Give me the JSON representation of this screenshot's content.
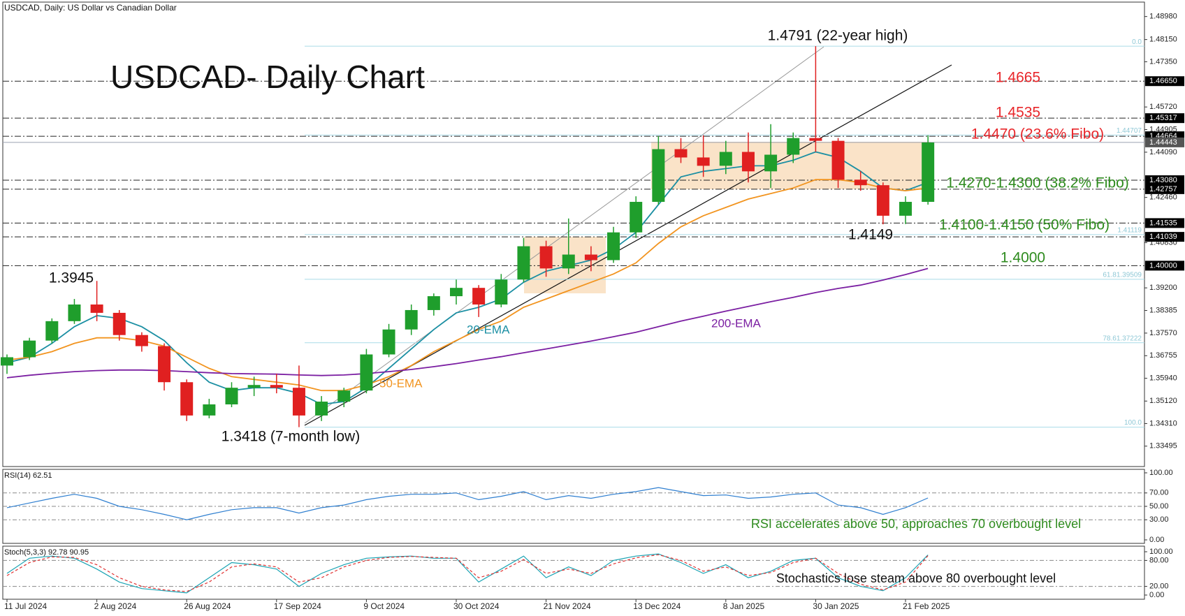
{
  "chart_data": [
    {
      "type": "candlestick",
      "title": "USDCAD- Daily Chart",
      "subtitle": "USDCAD, Daily:  US Dollar vs Canadian Dollar",
      "categories": [
        "11 Jul 2024",
        null,
        null,
        null,
        "2 Aug 2024",
        null,
        null,
        null,
        "26 Aug 2024",
        null,
        null,
        null,
        "17 Sep 2024",
        null,
        null,
        null,
        "9 Oct 2024",
        null,
        null,
        null,
        "30 Oct 2024",
        null,
        null,
        null,
        "21 Nov 2024",
        null,
        null,
        null,
        "13 Dec 2024",
        null,
        null,
        null,
        "8 Jan 2025",
        null,
        null,
        null,
        "30 Jan 2025",
        null,
        null,
        null,
        "21 Feb 2025",
        null
      ],
      "open": [
        1.364,
        1.367,
        1.373,
        1.38,
        1.386,
        1.383,
        1.375,
        1.371,
        1.358,
        1.346,
        1.35,
        1.356,
        1.357,
        1.356,
        1.346,
        1.351,
        1.355,
        1.368,
        1.377,
        1.384,
        1.389,
        1.392,
        1.386,
        1.395,
        1.407,
        1.399,
        1.404,
        1.402,
        1.412,
        1.423,
        1.442,
        1.439,
        1.436,
        1.441,
        1.434,
        1.44,
        1.446,
        1.445,
        1.431,
        1.429,
        1.418,
        1.423
      ],
      "high": [
        1.368,
        1.374,
        1.381,
        1.388,
        1.3945,
        1.384,
        1.376,
        1.372,
        1.359,
        1.352,
        1.358,
        1.36,
        1.361,
        1.364,
        1.353,
        1.356,
        1.37,
        1.379,
        1.386,
        1.39,
        1.395,
        1.393,
        1.397,
        1.41,
        1.409,
        1.417,
        1.407,
        1.414,
        1.425,
        1.4467,
        1.446,
        1.447,
        1.445,
        1.448,
        1.451,
        1.448,
        1.4791,
        1.446,
        1.434,
        1.43,
        1.425,
        1.447
      ],
      "low": [
        1.361,
        1.366,
        1.372,
        1.379,
        1.38,
        1.373,
        1.369,
        1.355,
        1.344,
        1.345,
        1.349,
        1.353,
        1.354,
        1.3418,
        1.344,
        1.349,
        1.354,
        1.367,
        1.375,
        1.382,
        1.386,
        1.3815,
        1.385,
        1.394,
        1.396,
        1.397,
        1.398,
        1.401,
        1.41,
        1.422,
        1.437,
        1.432,
        1.433,
        1.43,
        1.428,
        1.437,
        1.441,
        1.428,
        1.427,
        1.4149,
        1.415,
        1.422
      ],
      "close": [
        1.367,
        1.373,
        1.38,
        1.386,
        1.383,
        1.375,
        1.371,
        1.358,
        1.346,
        1.35,
        1.356,
        1.357,
        1.356,
        1.346,
        1.351,
        1.355,
        1.368,
        1.377,
        1.384,
        1.389,
        1.392,
        1.386,
        1.395,
        1.407,
        1.399,
        1.404,
        1.402,
        1.412,
        1.423,
        1.442,
        1.439,
        1.436,
        1.441,
        1.434,
        1.44,
        1.446,
        1.445,
        1.431,
        1.429,
        1.418,
        1.423,
        1.4444
      ],
      "up_color": "#1f9e2c",
      "down_color": "#e02020",
      "series": [
        {
          "name": "20-EMA",
          "color": "#1b8fa3",
          "values": [
            1.365,
            1.367,
            1.372,
            1.378,
            1.382,
            1.381,
            1.378,
            1.373,
            1.365,
            1.358,
            1.355,
            1.356,
            1.356,
            1.354,
            1.35,
            1.351,
            1.356,
            1.363,
            1.37,
            1.377,
            1.383,
            1.385,
            1.388,
            1.394,
            1.398,
            1.4,
            1.402,
            1.406,
            1.412,
            1.422,
            1.432,
            1.434,
            1.435,
            1.436,
            1.436,
            1.438,
            1.441,
            1.439,
            1.434,
            1.428,
            1.427,
            1.43
          ]
        },
        {
          "name": "50-EMA",
          "color": "#f2941f",
          "values": [
            1.366,
            1.367,
            1.369,
            1.372,
            1.374,
            1.374,
            1.373,
            1.371,
            1.367,
            1.363,
            1.36,
            1.359,
            1.358,
            1.357,
            1.355,
            1.355,
            1.357,
            1.36,
            1.364,
            1.369,
            1.373,
            1.377,
            1.38,
            1.385,
            1.388,
            1.391,
            1.394,
            1.397,
            1.401,
            1.408,
            1.414,
            1.418,
            1.421,
            1.424,
            1.426,
            1.428,
            1.431,
            1.431,
            1.43,
            1.428,
            1.427,
            1.428
          ]
        },
        {
          "name": "200-EMA",
          "color": "#7b1fa2",
          "values": [
            1.3596,
            1.3605,
            1.3612,
            1.3618,
            1.3622,
            1.3624,
            1.3624,
            1.3622,
            1.3618,
            1.3614,
            1.3611,
            1.361,
            1.3609,
            1.3606,
            1.3604,
            1.3606,
            1.3611,
            1.3618,
            1.3626,
            1.3636,
            1.3647,
            1.366,
            1.3672,
            1.3686,
            1.37,
            1.3714,
            1.3728,
            1.3744,
            1.376,
            1.378,
            1.38,
            1.3818,
            1.3836,
            1.3853,
            1.387,
            1.3886,
            1.3903,
            1.3918,
            1.393,
            1.3948,
            1.3968,
            1.399
          ]
        }
      ],
      "ylim": [
        1.3276,
        1.495
      ],
      "yticks": [
        1.33495,
        {
          "value": 1.3431,
          "label": "1.34310"
        },
        {
          "value": 1.3512,
          "label": "1.35120"
        },
        {
          "value": 1.3594,
          "label": "1.35940"
        },
        1.36755,
        {
          "value": 1.3757,
          "label": "1.37570"
        },
        1.38385,
        {
          "value": 1.392,
          "label": "1.39200"
        },
        {
          "value": 1.4083,
          "label": "1.40830"
        },
        {
          "value": 1.4246,
          "label": "1.42460"
        },
        {
          "value": 1.4409,
          "label": "1.44090"
        },
        1.44905,
        {
          "value": 1.4572,
          "label": "1.45720"
        },
        {
          "value": 1.4735,
          "label": "1.47350"
        },
        {
          "value": 1.4815,
          "label": "1.48150"
        },
        {
          "value": 1.4898,
          "label": "1.48980"
        }
      ],
      "levels": [
        {
          "value": 1.4665,
          "label": "1.46650"
        },
        {
          "value": 1.45317,
          "label": "1.45317"
        },
        {
          "value": 1.44664,
          "label": "1.44664"
        },
        {
          "value": 1.4308,
          "label": "1.43080"
        },
        {
          "value": 1.42757,
          "label": "1.42757"
        },
        {
          "value": 1.41535,
          "label": "1.41535"
        },
        {
          "value": 1.41039,
          "label": "1.41039"
        },
        {
          "value": 1.4,
          "label": "1.40000"
        }
      ],
      "last_price": {
        "value": 1.44443,
        "label": "1.44443"
      },
      "fib_levels": [
        {
          "value": 1.4791,
          "label": "0.0"
        },
        {
          "value": 1.44707,
          "label": "1.44707"
        },
        {
          "value": 1.41119,
          "label": "1.41119"
        },
        {
          "value": 1.39509,
          "label": "61.81.39509"
        },
        {
          "value": 1.37222,
          "label": "78.61.37222"
        },
        {
          "value": 1.3418,
          "label": "100.0"
        }
      ],
      "annotations": [
        {
          "text": "1.4791 (22-year high)",
          "color": "#111111"
        },
        {
          "text": "1.4665",
          "color": "#e8262a"
        },
        {
          "text": "1.4535",
          "color": "#e8262a"
        },
        {
          "text": "1.4470 (23.6% Fibo)",
          "color": "#e8262a"
        },
        {
          "text": "1.4270-1.4300 (38.2% Fibo)",
          "color": "#2e8b1e"
        },
        {
          "text": "1.4100-1.4150 (50% Fibo)",
          "color": "#2e8b1e"
        },
        {
          "text": "1.4149",
          "color": "#111111"
        },
        {
          "text": "1.4000",
          "color": "#2e8b1e"
        },
        {
          "text": "1.3945",
          "color": "#111111"
        },
        {
          "text": "1.3418 (7-month low)",
          "color": "#111111"
        }
      ]
    },
    {
      "type": "line",
      "title": "RSI(14) 62.51",
      "annotation": "RSI accelerates above 50, approaches 70 overbought level",
      "annotation_color": "#2e8b1e",
      "series": [
        {
          "color": "#2f7fd0",
          "values": [
            48,
            55,
            62,
            68,
            62,
            50,
            45,
            38,
            30,
            38,
            45,
            48,
            48,
            40,
            48,
            52,
            60,
            65,
            68,
            68,
            70,
            60,
            65,
            72,
            60,
            66,
            62,
            68,
            72,
            78,
            72,
            66,
            67,
            62,
            64,
            68,
            70,
            52,
            48,
            38,
            48,
            62.51
          ]
        }
      ],
      "ylim": [
        0,
        100
      ],
      "yticks": [
        {
          "value": 0,
          "label": "0.00"
        },
        {
          "value": 30,
          "label": "30.00"
        },
        {
          "value": 50,
          "label": "50.00"
        },
        {
          "value": 70,
          "label": "70.00"
        },
        {
          "value": 100,
          "label": "100.00"
        }
      ]
    },
    {
      "type": "line",
      "title": "Stoch(5,3,3) 92.78 90.95",
      "annotation": "Stochastics lose steam above 80 overbought level",
      "annotation_color": "#111111",
      "series": [
        {
          "color": "#1aa3b3",
          "values": [
            50,
            85,
            90,
            85,
            60,
            30,
            15,
            10,
            5,
            40,
            75,
            70,
            60,
            20,
            50,
            70,
            85,
            88,
            90,
            85,
            85,
            30,
            60,
            90,
            40,
            65,
            45,
            80,
            90,
            95,
            75,
            50,
            70,
            40,
            55,
            80,
            85,
            40,
            20,
            10,
            40,
            92.78
          ]
        },
        {
          "color": "#e03030",
          "dashed": true,
          "values": [
            45,
            75,
            88,
            87,
            70,
            40,
            20,
            12,
            8,
            30,
            65,
            72,
            65,
            30,
            40,
            65,
            80,
            87,
            89,
            87,
            85,
            40,
            55,
            82,
            50,
            60,
            50,
            72,
            86,
            93,
            80,
            55,
            65,
            45,
            52,
            75,
            85,
            50,
            25,
            12,
            30,
            90.95
          ]
        }
      ],
      "ylim": [
        0,
        100
      ],
      "yticks": [
        {
          "value": 0,
          "label": "0.00"
        },
        {
          "value": 20,
          "label": "20.00"
        },
        {
          "value": 80,
          "label": "80.00"
        },
        {
          "value": 100,
          "label": "100.00"
        }
      ]
    }
  ]
}
